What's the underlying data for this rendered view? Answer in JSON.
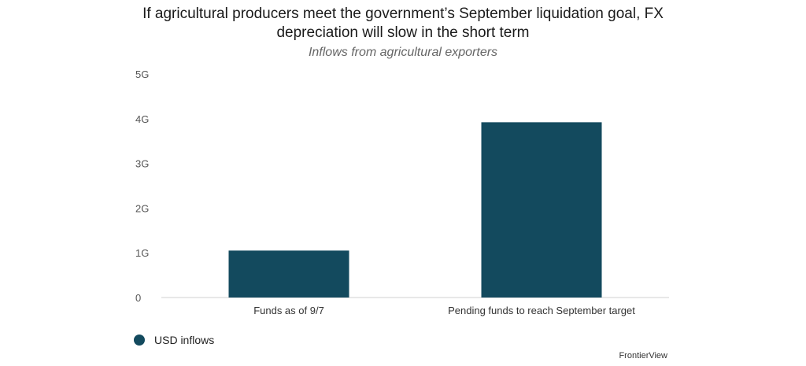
{
  "chart_data": {
    "type": "bar",
    "title_lines": [
      "If agricultural producers meet the government’s September liquidation goal, FX",
      "depreciation will slow in the short term"
    ],
    "subtitle": "Inflows from agricultural exporters",
    "categories": [
      "Funds as of 9/7",
      "Pending funds to reach September target"
    ],
    "series": [
      {
        "name": "USD inflows",
        "values": [
          1.05,
          3.92
        ],
        "color": "#134a5e"
      }
    ],
    "y_ticks": [
      0,
      1,
      2,
      3,
      4,
      5
    ],
    "y_tick_labels": [
      "0",
      "1G",
      "2G",
      "3G",
      "4G",
      "5G"
    ],
    "ylim": [
      0,
      5
    ],
    "grid": false,
    "legend_position": "bottom-left",
    "source": "FrontierView"
  }
}
